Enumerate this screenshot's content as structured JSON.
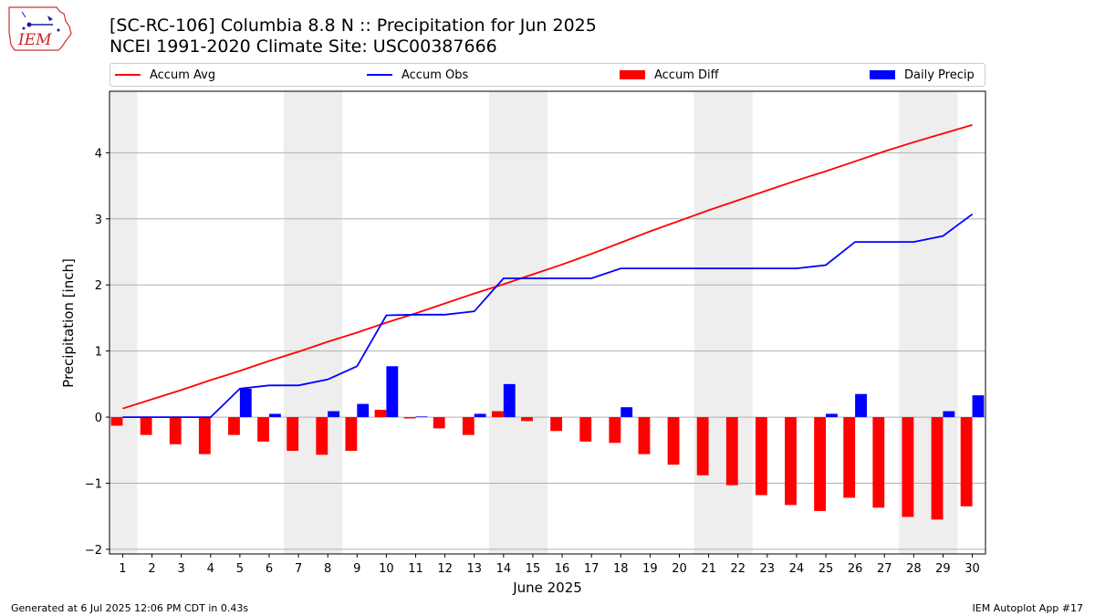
{
  "header": {
    "title_line1": "[SC-RC-106] Columbia 8.8 N :: Precipitation for Jun 2025",
    "title_line2": "NCEI 1991-2020 Climate Site: USC00387666"
  },
  "logo": {
    "text": "IEM"
  },
  "legend": {
    "placement": "top",
    "items": [
      {
        "label": "Accum Avg",
        "color": "#ff0000",
        "kind": "line"
      },
      {
        "label": "Accum Obs",
        "color": "#0000ff",
        "kind": "line"
      },
      {
        "label": "Accum Diff",
        "color": "#ff0000",
        "kind": "bar"
      },
      {
        "label": "Daily Precip",
        "color": "#0000ff",
        "kind": "bar"
      }
    ]
  },
  "footer": {
    "generated": "Generated at 6 Jul 2025 12:06 PM CDT in 0.43s",
    "app": "IEM Autoplot App #17"
  },
  "chart_data": {
    "type": "bar",
    "xlabel": "June 2025",
    "ylabel": "Precipitation [inch]",
    "x": [
      1,
      2,
      3,
      4,
      5,
      6,
      7,
      8,
      9,
      10,
      11,
      12,
      13,
      14,
      15,
      16,
      17,
      18,
      19,
      20,
      21,
      22,
      23,
      24,
      25,
      26,
      27,
      28,
      29,
      30
    ],
    "ylim": [
      -2.07,
      4.93
    ],
    "yticks": [
      -2,
      -1,
      0,
      1,
      2,
      3,
      4
    ],
    "grid": "horizontal",
    "weekend_shading": [
      [
        1,
        1
      ],
      [
        7,
        8
      ],
      [
        14,
        15
      ],
      [
        21,
        22
      ],
      [
        28,
        29
      ]
    ],
    "colors": {
      "avg": "#ff0000",
      "obs": "#0000ff",
      "shade": "#eeeeee",
      "grid": "#b0b0b0"
    },
    "series": [
      {
        "name": "Accum Avg",
        "kind": "line",
        "values": [
          0.13,
          0.27,
          0.41,
          0.56,
          0.7,
          0.85,
          0.99,
          1.14,
          1.28,
          1.43,
          1.57,
          1.72,
          1.87,
          2.01,
          2.16,
          2.31,
          2.47,
          2.64,
          2.81,
          2.97,
          3.13,
          3.28,
          3.43,
          3.58,
          3.72,
          3.87,
          4.02,
          4.16,
          4.29,
          4.42
        ]
      },
      {
        "name": "Accum Obs",
        "kind": "line",
        "values": [
          0.0,
          0.0,
          0.0,
          0.0,
          0.43,
          0.48,
          0.48,
          0.57,
          0.77,
          1.54,
          1.55,
          1.55,
          1.6,
          2.1,
          2.1,
          2.1,
          2.1,
          2.25,
          2.25,
          2.25,
          2.25,
          2.25,
          2.25,
          2.25,
          2.3,
          2.65,
          2.65,
          2.65,
          2.74,
          3.07
        ]
      },
      {
        "name": "Accum Diff",
        "kind": "bar",
        "values": [
          -0.13,
          -0.27,
          -0.41,
          -0.56,
          -0.27,
          -0.37,
          -0.51,
          -0.57,
          -0.51,
          0.11,
          -0.02,
          -0.17,
          -0.27,
          0.09,
          -0.06,
          -0.21,
          -0.37,
          -0.39,
          -0.56,
          -0.72,
          -0.88,
          -1.03,
          -1.18,
          -1.33,
          -1.42,
          -1.22,
          -1.37,
          -1.51,
          -1.55,
          -1.35
        ]
      },
      {
        "name": "Daily Precip",
        "kind": "bar",
        "values": [
          0.0,
          0.0,
          0.0,
          0.0,
          0.43,
          0.05,
          0.0,
          0.09,
          0.2,
          0.77,
          0.01,
          0.0,
          0.05,
          0.5,
          0.0,
          0.0,
          0.0,
          0.15,
          0.0,
          0.0,
          0.0,
          0.0,
          0.0,
          0.0,
          0.05,
          0.35,
          0.0,
          0.0,
          0.09,
          0.33
        ]
      }
    ]
  }
}
